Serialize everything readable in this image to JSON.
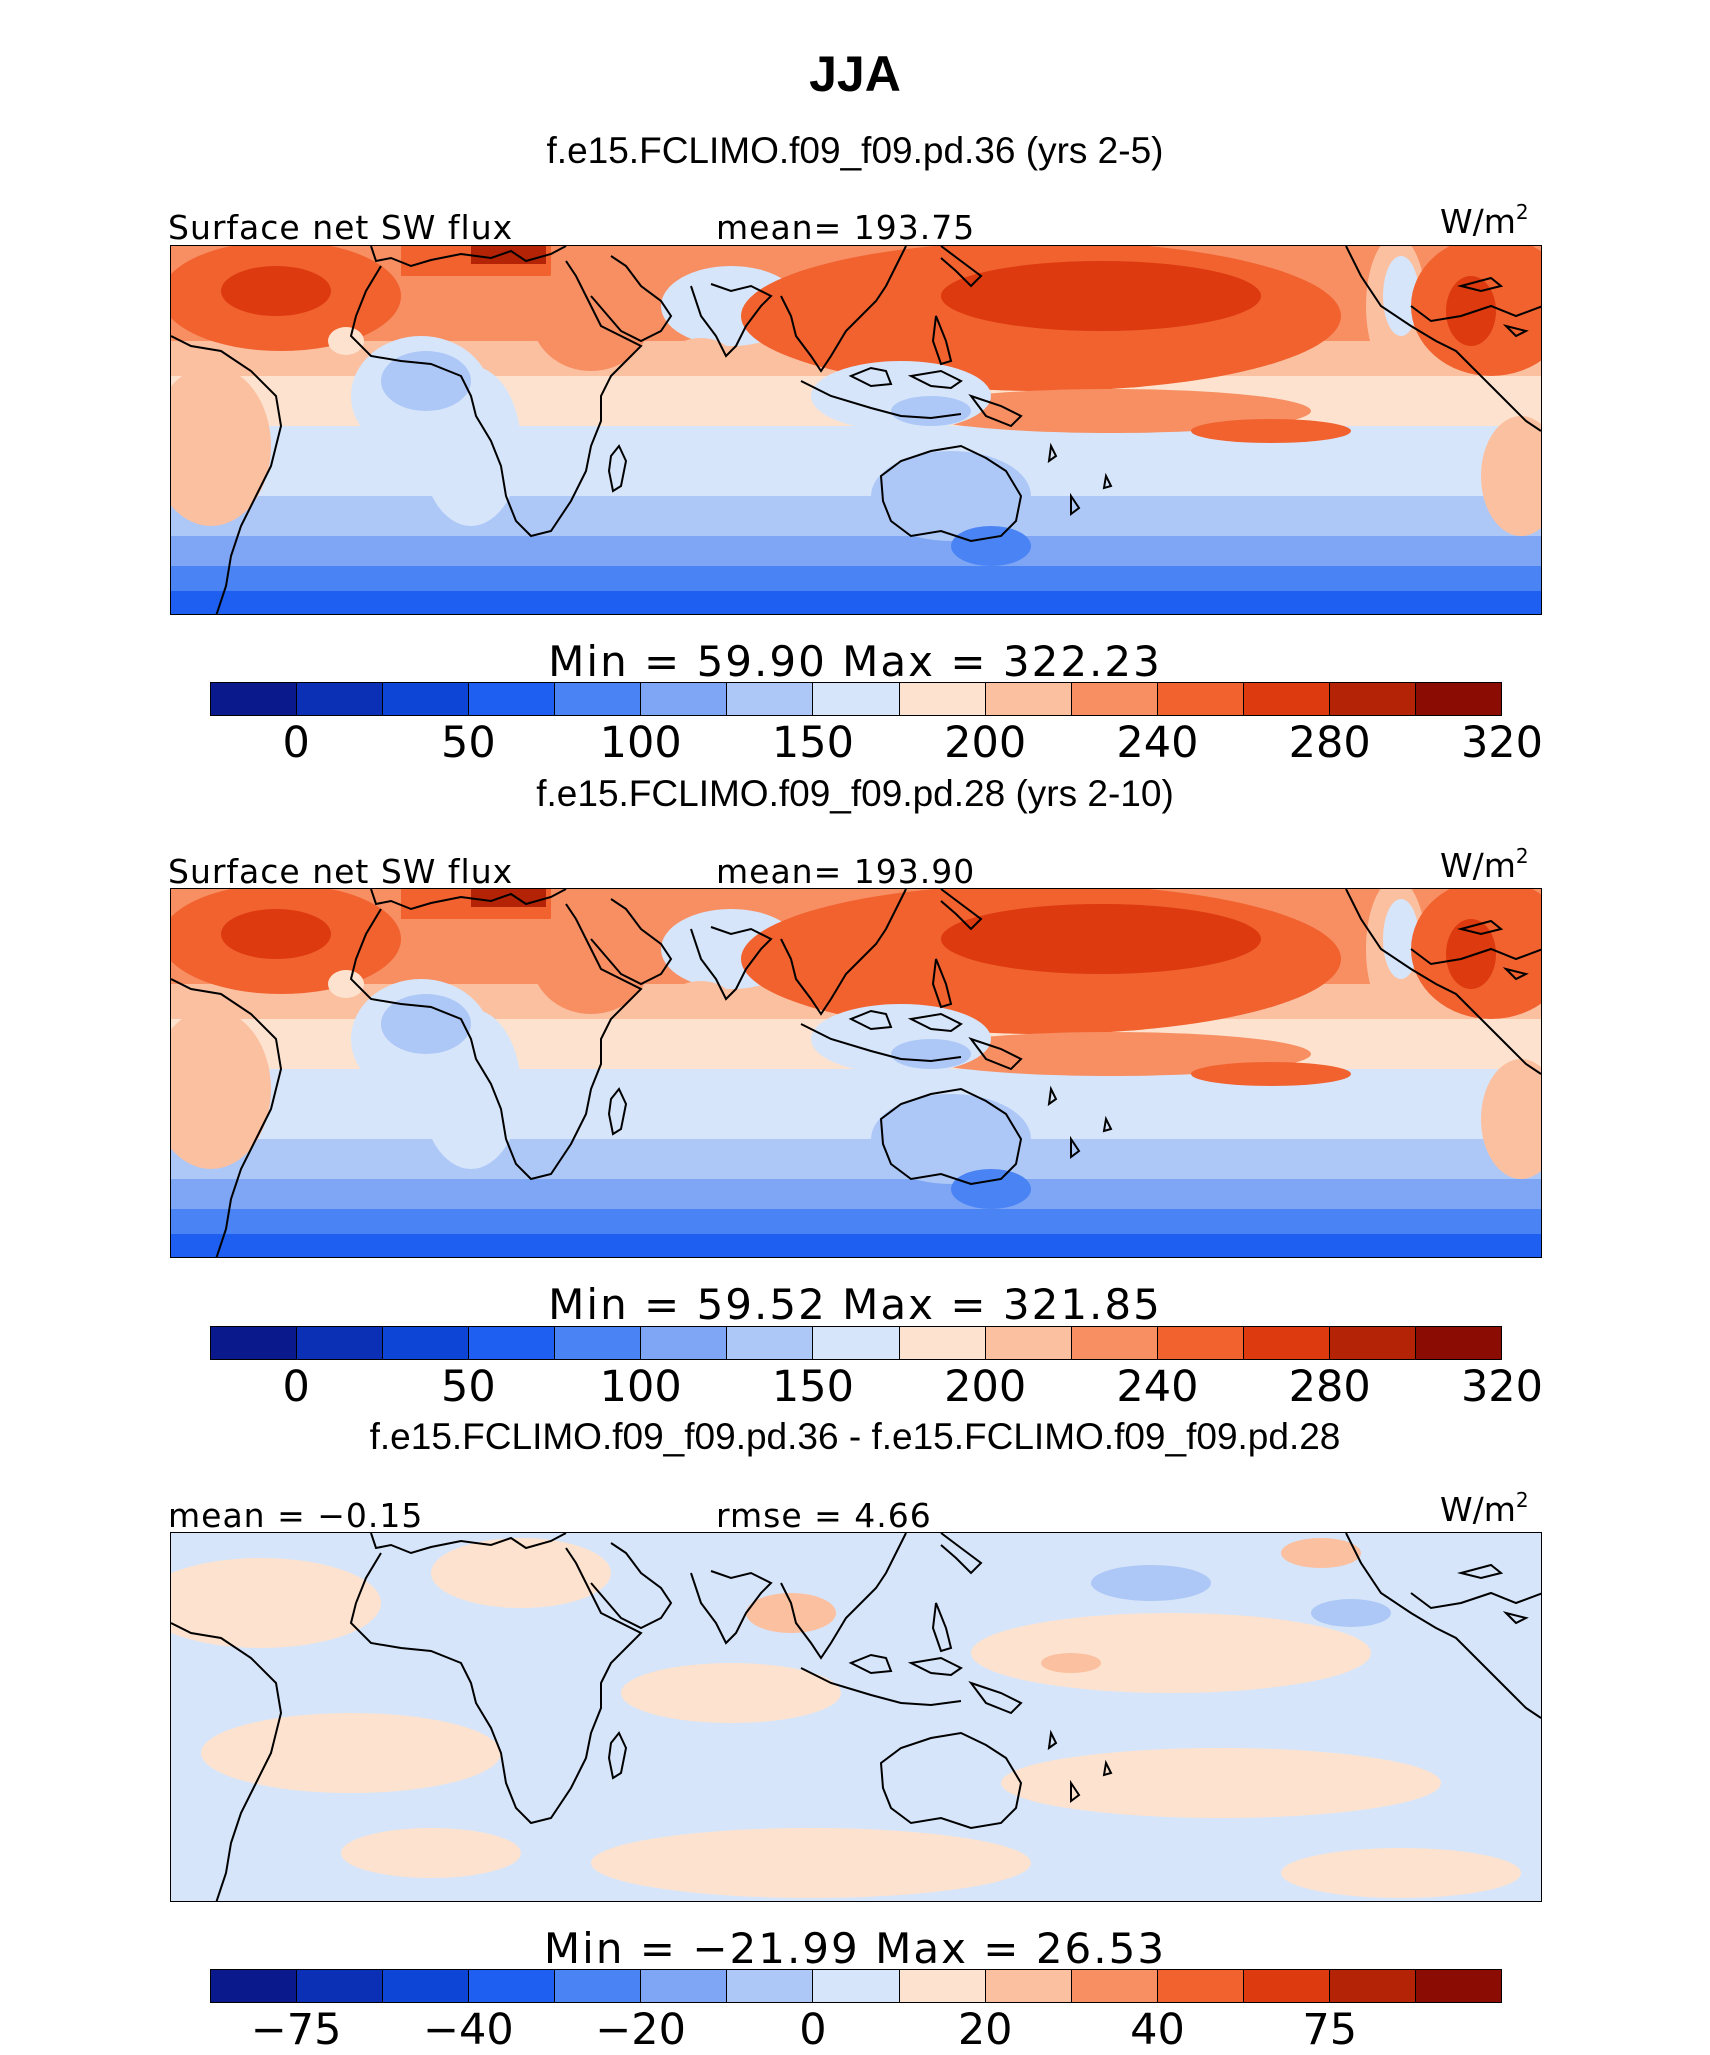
{
  "title": "JJA",
  "unit_base": "W/m",
  "unit_exp": "2",
  "panels": [
    {
      "case_title": "f.e15.FCLIMO.f09_f09.pd.36 (yrs 2-5)",
      "left_label": "Surface net SW flux",
      "center_label": "mean=  193.75",
      "minmax": "Min  =   59.90  Max  =  322.23",
      "tick_labels": [
        "0",
        "50",
        "100",
        "150",
        "200",
        "240",
        "280",
        "320"
      ],
      "type": "absolute"
    },
    {
      "case_title": "f.e15.FCLIMO.f09_f09.pd.28 (yrs 2-10)",
      "left_label": "Surface net SW flux",
      "center_label": "mean=  193.90",
      "minmax": "Min  =   59.52  Max  =  321.85",
      "tick_labels": [
        "0",
        "50",
        "100",
        "150",
        "200",
        "240",
        "280",
        "320"
      ],
      "type": "absolute"
    },
    {
      "case_title": "f.e15.FCLIMO.f09_f09.pd.36 - f.e15.FCLIMO.f09_f09.pd.28",
      "left_label": "mean =  −0.15",
      "center_label": "rmse =    4.66",
      "minmax": "Min  = −21.99  Max  =   26.53",
      "tick_labels": [
        "−75",
        "−40",
        "−20",
        "0",
        "20",
        "40",
        "75"
      ],
      "type": "difference"
    }
  ],
  "colors": {
    "palette": [
      "#0a1a8c",
      "#0b2fb5",
      "#0d45d6",
      "#1e5ff2",
      "#4a83f3",
      "#7ea6f5",
      "#adc8f7",
      "#d6e5fa",
      "#fde3cf",
      "#fbc0a0",
      "#f78f63",
      "#f1622f",
      "#dd3a0f",
      "#b52306",
      "#8a0c03"
    ],
    "coast": "#000000"
  },
  "chart_data": {
    "type": "heatmap",
    "title": "JJA",
    "variable": "Surface net SW flux",
    "units": "W/m2",
    "region": "Tropics/mid-latitudes map, ~0E–360E (Atlantic–Africa–Indian–Pacific)",
    "panels": [
      {
        "case": "f.e15.FCLIMO.f09_f09.pd.36 (yrs 2-5)",
        "mean": 193.75,
        "min": 59.9,
        "max": 322.23,
        "contour_levels": [
          0,
          25,
          50,
          75,
          100,
          125,
          150,
          175,
          200,
          220,
          240,
          260,
          280,
          300,
          320
        ]
      },
      {
        "case": "f.e15.FCLIMO.f09_f09.pd.28 (yrs 2-10)",
        "mean": 193.9,
        "min": 59.52,
        "max": 321.85,
        "contour_levels": [
          0,
          25,
          50,
          75,
          100,
          125,
          150,
          175,
          200,
          220,
          240,
          260,
          280,
          300,
          320
        ]
      },
      {
        "case": "f.e15.FCLIMO.f09_f09.pd.36 - f.e15.FCLIMO.f09_f09.pd.28",
        "mean": -0.15,
        "rmse": 4.66,
        "min": -21.99,
        "max": 26.53,
        "contour_levels": [
          -100,
          -75,
          -50,
          -40,
          -30,
          -20,
          -10,
          0,
          10,
          20,
          30,
          40,
          50,
          75,
          100
        ]
      }
    ]
  }
}
